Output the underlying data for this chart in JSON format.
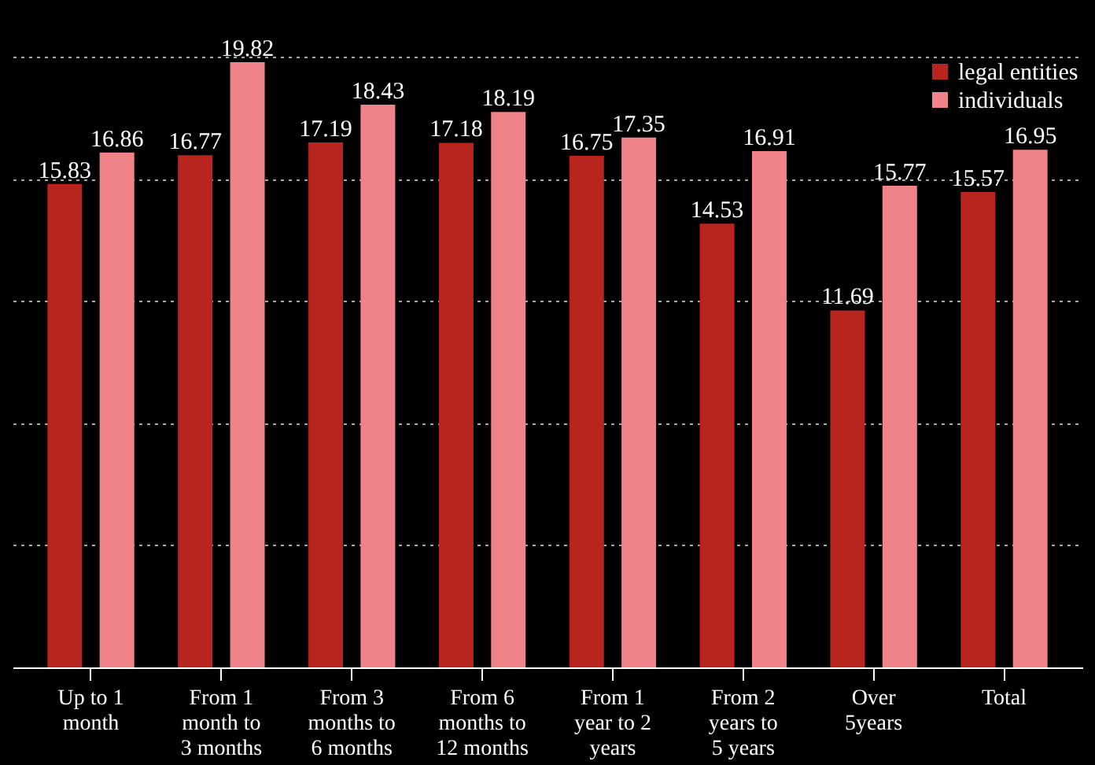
{
  "chart_data": {
    "type": "bar",
    "categories": [
      "Up to 1 month",
      "From 1 month to 3 months",
      "From 3 months to 6 months",
      "From 6 months to 12 months",
      "From 1 year to 2 years",
      "From 2 years to 5 years",
      "Over 5years",
      "Total"
    ],
    "series": [
      {
        "name": "legal entities",
        "color": "#b8251f",
        "values": [
          15.83,
          16.77,
          17.19,
          17.18,
          16.75,
          14.53,
          11.69,
          15.57
        ]
      },
      {
        "name": "individuals",
        "color": "#f0828a",
        "values": [
          16.86,
          19.82,
          18.43,
          18.19,
          17.35,
          16.91,
          15.77,
          16.95
        ]
      }
    ],
    "ylim": [
      0,
      20
    ],
    "yticks": [
      {
        "value": 0,
        "label": null
      },
      {
        "value": 4,
        "label": null
      },
      {
        "value": 8,
        "label": null
      },
      {
        "value": 12,
        "label": null
      },
      {
        "value": 16,
        "label": null
      },
      {
        "value": 20,
        "label": null
      }
    ],
    "grid": "y",
    "legend": "top right",
    "data_labels": true,
    "tick_labels": "x"
  }
}
